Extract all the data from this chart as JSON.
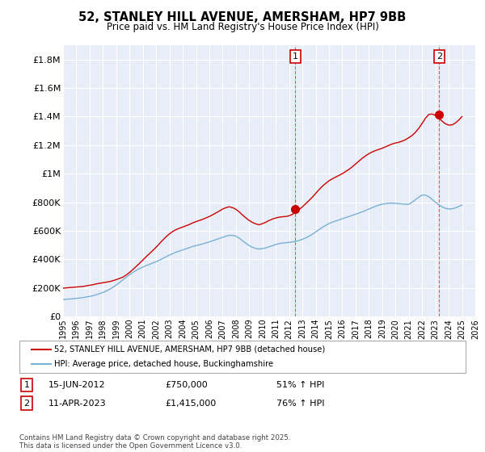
{
  "title": "52, STANLEY HILL AVENUE, AMERSHAM, HP7 9BB",
  "subtitle": "Price paid vs. HM Land Registry's House Price Index (HPI)",
  "legend_line1": "52, STANLEY HILL AVENUE, AMERSHAM, HP7 9BB (detached house)",
  "legend_line2": "HPI: Average price, detached house, Buckinghamshire",
  "annotation1_label": "1",
  "annotation1_date": "15-JUN-2012",
  "annotation1_price": "£750,000",
  "annotation1_pct": "51% ↑ HPI",
  "annotation2_label": "2",
  "annotation2_date": "11-APR-2023",
  "annotation2_price": "£1,415,000",
  "annotation2_pct": "76% ↑ HPI",
  "footer": "Contains HM Land Registry data © Crown copyright and database right 2025.\nThis data is licensed under the Open Government Licence v3.0.",
  "red_color": "#cc0000",
  "blue_color": "#7ab0d4",
  "background_color": "#e8eef8",
  "grid_color": "#ffffff",
  "ylim": [
    0,
    1900000
  ],
  "yticks": [
    0,
    200000,
    400000,
    600000,
    800000,
    1000000,
    1200000,
    1400000,
    1600000,
    1800000
  ],
  "ytick_labels": [
    "£0",
    "£200K",
    "£400K",
    "£600K",
    "£800K",
    "£1M",
    "£1.2M",
    "£1.4M",
    "£1.6M",
    "£1.8M"
  ],
  "red_x": [
    1995.0,
    1995.25,
    1995.5,
    1995.75,
    1996.0,
    1996.25,
    1996.5,
    1996.75,
    1997.0,
    1997.25,
    1997.5,
    1997.75,
    1998.0,
    1998.25,
    1998.5,
    1998.75,
    1999.0,
    1999.25,
    1999.5,
    1999.75,
    2000.0,
    2000.25,
    2000.5,
    2000.75,
    2001.0,
    2001.25,
    2001.5,
    2001.75,
    2002.0,
    2002.25,
    2002.5,
    2002.75,
    2003.0,
    2003.25,
    2003.5,
    2003.75,
    2004.0,
    2004.25,
    2004.5,
    2004.75,
    2005.0,
    2005.25,
    2005.5,
    2005.75,
    2006.0,
    2006.25,
    2006.5,
    2006.75,
    2007.0,
    2007.25,
    2007.5,
    2007.75,
    2008.0,
    2008.25,
    2008.5,
    2008.75,
    2009.0,
    2009.25,
    2009.5,
    2009.75,
    2010.0,
    2010.25,
    2010.5,
    2010.75,
    2011.0,
    2011.25,
    2011.5,
    2011.75,
    2012.0,
    2012.25,
    2012.5,
    2012.75,
    2013.0,
    2013.25,
    2013.5,
    2013.75,
    2014.0,
    2014.25,
    2014.5,
    2014.75,
    2015.0,
    2015.25,
    2015.5,
    2015.75,
    2016.0,
    2016.25,
    2016.5,
    2016.75,
    2017.0,
    2017.25,
    2017.5,
    2017.75,
    2018.0,
    2018.25,
    2018.5,
    2018.75,
    2019.0,
    2019.25,
    2019.5,
    2019.75,
    2020.0,
    2020.25,
    2020.5,
    2020.75,
    2021.0,
    2021.25,
    2021.5,
    2021.75,
    2022.0,
    2022.25,
    2022.5,
    2022.75,
    2023.0,
    2023.25,
    2023.5,
    2023.75,
    2024.0,
    2024.25,
    2024.5,
    2024.75,
    2025.0
  ],
  "red_y": [
    198000,
    200000,
    202000,
    204000,
    206000,
    208000,
    210000,
    214000,
    218000,
    222000,
    228000,
    232000,
    236000,
    240000,
    244000,
    250000,
    258000,
    266000,
    275000,
    290000,
    308000,
    328000,
    350000,
    372000,
    395000,
    418000,
    440000,
    462000,
    485000,
    510000,
    535000,
    558000,
    578000,
    595000,
    608000,
    618000,
    626000,
    635000,
    644000,
    655000,
    664000,
    672000,
    680000,
    690000,
    700000,
    712000,
    725000,
    738000,
    752000,
    762000,
    768000,
    762000,
    750000,
    732000,
    710000,
    690000,
    672000,
    658000,
    648000,
    642000,
    650000,
    660000,
    672000,
    682000,
    690000,
    695000,
    698000,
    700000,
    705000,
    715000,
    730000,
    748000,
    768000,
    790000,
    812000,
    836000,
    862000,
    888000,
    912000,
    932000,
    950000,
    964000,
    976000,
    988000,
    1000000,
    1015000,
    1030000,
    1048000,
    1068000,
    1088000,
    1108000,
    1125000,
    1140000,
    1152000,
    1162000,
    1170000,
    1178000,
    1188000,
    1198000,
    1208000,
    1215000,
    1220000,
    1228000,
    1238000,
    1252000,
    1268000,
    1290000,
    1318000,
    1352000,
    1388000,
    1415000,
    1418000,
    1408000,
    1390000,
    1368000,
    1350000,
    1340000,
    1342000,
    1355000,
    1375000,
    1400000
  ],
  "blue_x": [
    1995.0,
    1995.25,
    1995.5,
    1995.75,
    1996.0,
    1996.25,
    1996.5,
    1996.75,
    1997.0,
    1997.25,
    1997.5,
    1997.75,
    1998.0,
    1998.25,
    1998.5,
    1998.75,
    1999.0,
    1999.25,
    1999.5,
    1999.75,
    2000.0,
    2000.25,
    2000.5,
    2000.75,
    2001.0,
    2001.25,
    2001.5,
    2001.75,
    2002.0,
    2002.25,
    2002.5,
    2002.75,
    2003.0,
    2003.25,
    2003.5,
    2003.75,
    2004.0,
    2004.25,
    2004.5,
    2004.75,
    2005.0,
    2005.25,
    2005.5,
    2005.75,
    2006.0,
    2006.25,
    2006.5,
    2006.75,
    2007.0,
    2007.25,
    2007.5,
    2007.75,
    2008.0,
    2008.25,
    2008.5,
    2008.75,
    2009.0,
    2009.25,
    2009.5,
    2009.75,
    2010.0,
    2010.25,
    2010.5,
    2010.75,
    2011.0,
    2011.25,
    2011.5,
    2011.75,
    2012.0,
    2012.25,
    2012.5,
    2012.75,
    2013.0,
    2013.25,
    2013.5,
    2013.75,
    2014.0,
    2014.25,
    2014.5,
    2014.75,
    2015.0,
    2015.25,
    2015.5,
    2015.75,
    2016.0,
    2016.25,
    2016.5,
    2016.75,
    2017.0,
    2017.25,
    2017.5,
    2017.75,
    2018.0,
    2018.25,
    2018.5,
    2018.75,
    2019.0,
    2019.25,
    2019.5,
    2019.75,
    2020.0,
    2020.25,
    2020.5,
    2020.75,
    2021.0,
    2021.25,
    2021.5,
    2021.75,
    2022.0,
    2022.25,
    2022.5,
    2022.75,
    2023.0,
    2023.25,
    2023.5,
    2023.75,
    2024.0,
    2024.25,
    2024.5,
    2024.75,
    2025.0
  ],
  "blue_y": [
    118000,
    120000,
    122000,
    124000,
    126000,
    129000,
    132000,
    136000,
    140000,
    145000,
    152000,
    160000,
    168000,
    178000,
    190000,
    204000,
    220000,
    238000,
    256000,
    274000,
    292000,
    308000,
    322000,
    335000,
    346000,
    356000,
    365000,
    374000,
    383000,
    394000,
    406000,
    418000,
    430000,
    440000,
    450000,
    458000,
    466000,
    474000,
    482000,
    490000,
    496000,
    502000,
    508000,
    515000,
    522000,
    530000,
    538000,
    546000,
    554000,
    562000,
    568000,
    568000,
    562000,
    548000,
    530000,
    512000,
    496000,
    484000,
    476000,
    472000,
    475000,
    480000,
    488000,
    496000,
    504000,
    510000,
    514000,
    516000,
    519000,
    522000,
    526000,
    532000,
    540000,
    550000,
    562000,
    576000,
    592000,
    608000,
    624000,
    638000,
    650000,
    660000,
    668000,
    676000,
    684000,
    692000,
    700000,
    708000,
    716000,
    724000,
    733000,
    742000,
    752000,
    762000,
    772000,
    780000,
    786000,
    790000,
    793000,
    794000,
    792000,
    790000,
    788000,
    786000,
    785000,
    800000,
    818000,
    836000,
    850000,
    850000,
    838000,
    820000,
    800000,
    782000,
    768000,
    758000,
    752000,
    754000,
    760000,
    770000,
    780000
  ],
  "ann1_x": 2012.46,
  "ann1_y": 750000,
  "ann2_x": 2023.28,
  "ann2_y": 1415000,
  "vline1_x": 2012.46,
  "vline2_x": 2023.28,
  "xlim": [
    1995,
    2026
  ]
}
